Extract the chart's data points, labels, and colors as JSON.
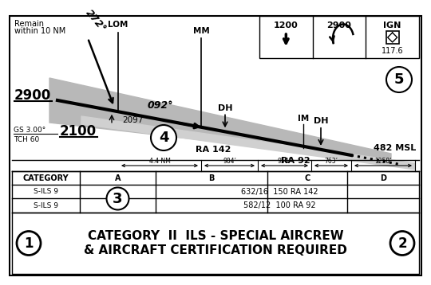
{
  "title_line1": "CATEGORY  II  ILS - SPECIAL AIRCREW",
  "title_line2": "& AIRCRAFT CERTIFICATION REQUIRED",
  "bg_color": "#ffffff",
  "remain_text_1": "Remain",
  "remain_text_2": "within 10 NM",
  "lom_label": "LOM",
  "mm_label": "MM",
  "bearing_text": "272°",
  "course_text": "092°",
  "alt_2900_left": "2900",
  "alt_2097": "2097",
  "alt_2100": "2100",
  "gs_text": "GS 3.00°",
  "tch_text": "TCH 60",
  "ra142_text": "RA 142",
  "ra92_text": "RA 92",
  "dh_text": "DH",
  "im_text": "IM",
  "msl_text": "482 MSL",
  "dist_labels": [
    "4.4 NM",
    "984’",
    "954’",
    "763’",
    "1258’"
  ],
  "cat_header": [
    "CATEGORY",
    "A",
    "B",
    "C",
    "D"
  ],
  "row1_label": "S-ILS 9",
  "row2_label": "S-ILS 9",
  "row1_data_left": "632/16",
  "row1_data_right": "150 RA 142",
  "row2_data_left": "582/12",
  "row2_data_right": "100 RA 92",
  "top_box_1200": "1200",
  "top_box_2900": "2900",
  "top_box_IGN": "IGN",
  "top_box_freq": "117.6",
  "circle1": "1",
  "circle2": "2",
  "circle3": "3",
  "circle4": "4",
  "circle5": "5"
}
